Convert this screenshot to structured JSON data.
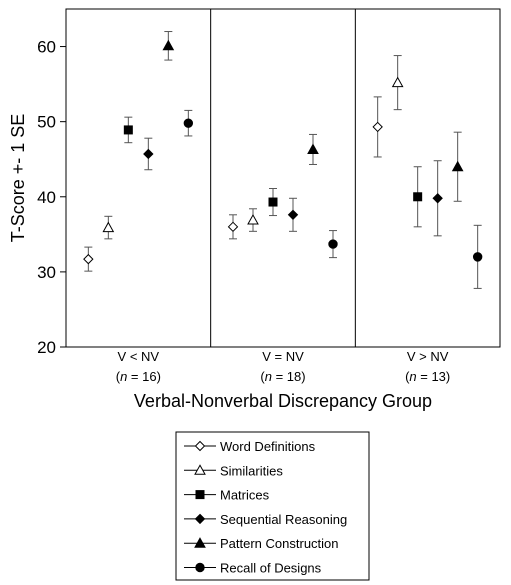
{
  "chart_data": {
    "type": "scatter",
    "ylabel": "T-Score +- 1 SE",
    "xlabel": "Verbal-Nonverbal Discrepancy Group",
    "ylim": [
      20,
      65
    ],
    "yticks": [
      20,
      30,
      40,
      50,
      60
    ],
    "groups": [
      {
        "label": "V < NV",
        "n_prefix": "(",
        "n_label": "n",
        "n_value": " = 16)"
      },
      {
        "label": "V = NV",
        "n_prefix": "(",
        "n_label": "n",
        "n_value": " = 18)"
      },
      {
        "label": "V > NV",
        "n_prefix": "(",
        "n_label": "n",
        "n_value": " =  13)"
      }
    ],
    "series": [
      {
        "name": "Word Definitions",
        "marker": "diamond-open",
        "values": [
          31.7,
          36.0,
          49.3
        ],
        "se": [
          1.6,
          1.6,
          4.0
        ]
      },
      {
        "name": "Similarities",
        "marker": "triangle-open",
        "values": [
          35.9,
          36.9,
          55.2
        ],
        "se": [
          1.5,
          1.5,
          3.6
        ]
      },
      {
        "name": "Matrices",
        "marker": "square-filled",
        "values": [
          48.9,
          39.3,
          40.0
        ],
        "se": [
          1.7,
          1.8,
          4.0
        ]
      },
      {
        "name": "Sequential Reasoning",
        "marker": "diamond-filled",
        "values": [
          45.7,
          37.6,
          39.8
        ],
        "se": [
          2.1,
          2.2,
          5.0
        ]
      },
      {
        "name": "Pattern Construction",
        "marker": "triangle-filled",
        "values": [
          60.1,
          46.3,
          44.0
        ],
        "se": [
          1.9,
          2.0,
          4.6
        ]
      },
      {
        "name": "Recall of Designs",
        "marker": "circle-filled",
        "values": [
          49.8,
          33.7,
          32.0
        ],
        "se": [
          1.7,
          1.8,
          4.2
        ]
      }
    ],
    "legend_position": "bottom"
  }
}
